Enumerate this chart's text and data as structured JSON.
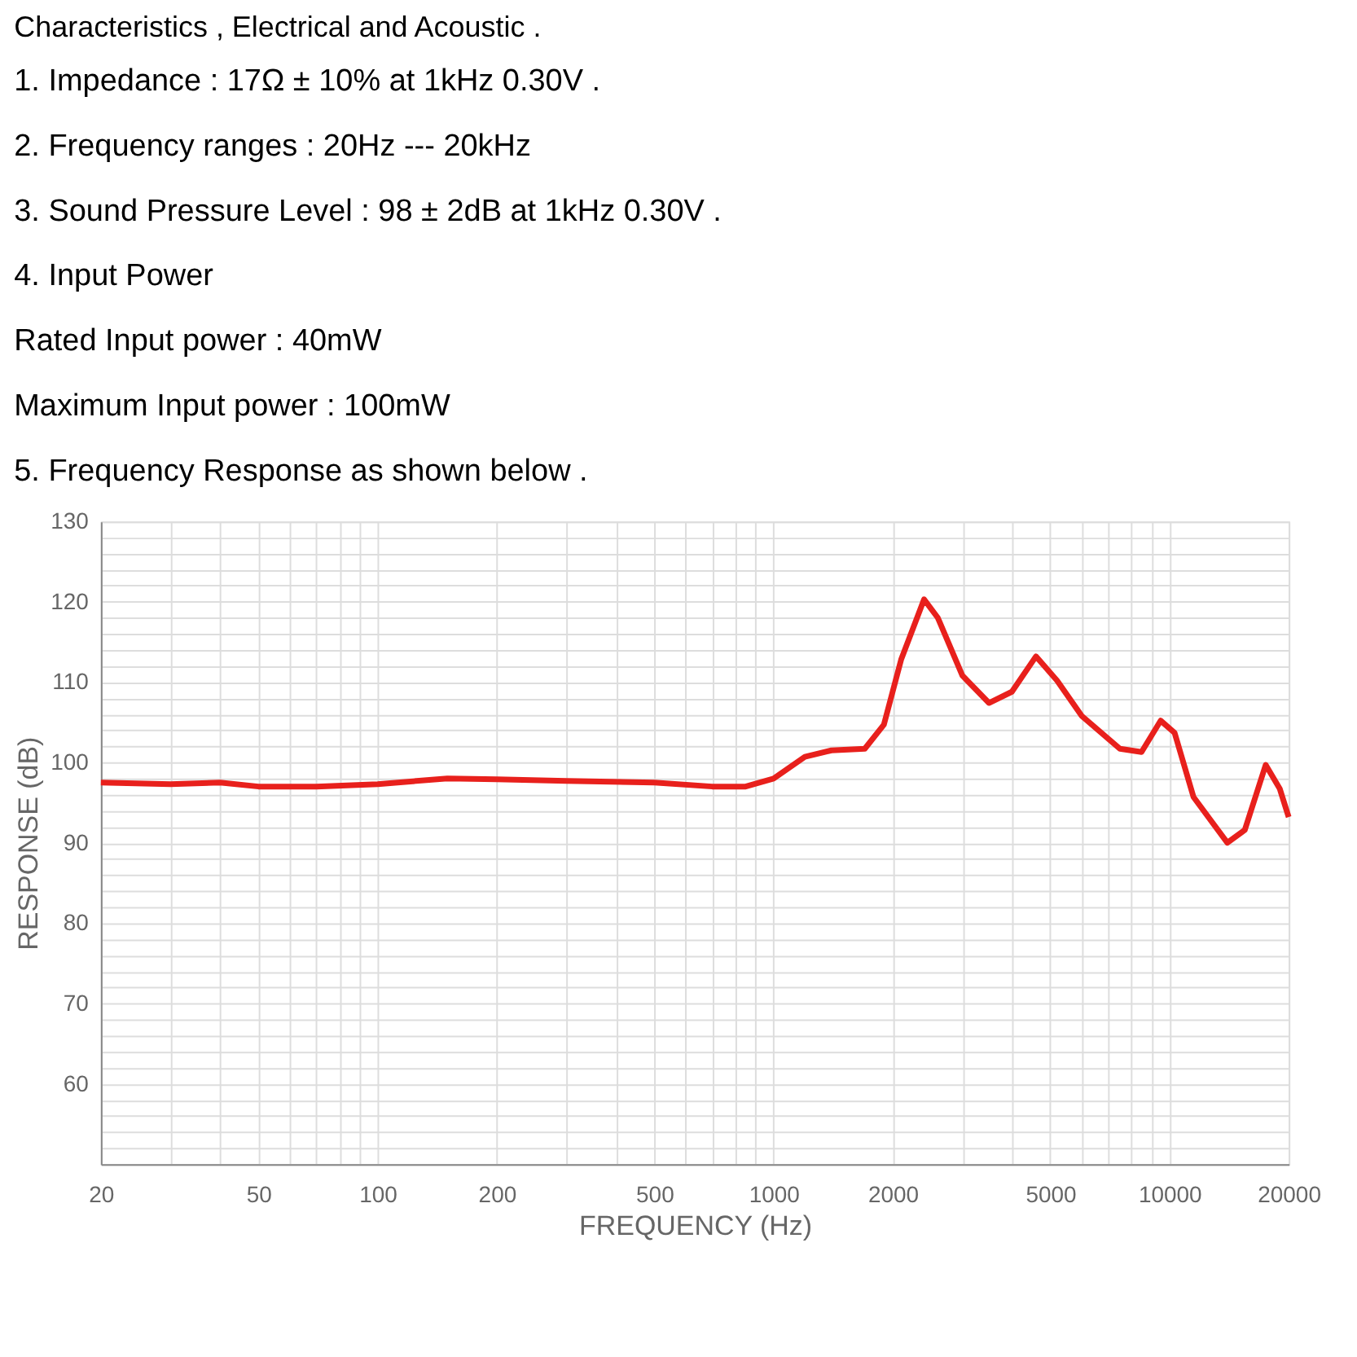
{
  "chart_data": {
    "type": "line",
    "title": "Characteristics , Electrical and Acoustic .",
    "annotations": [
      "1. Impedance : 17Ω ± 10% at 1kHz  0.30V .",
      "2. Frequency ranges : 20Hz --- 20kHz",
      "3. Sound Pressure Level :  98 ± 2dB at 1kHz 0.30V .",
      "4. Input Power",
      "Rated Input power : 40mW",
      "Maximum Input power : 100mW",
      "5. Frequency Response as shown below ."
    ],
    "xlabel": "FREQUENCY (Hz)",
    "ylabel": "RESPONSE (dB)",
    "log": "x",
    "grid": true,
    "marker": "none",
    "line_style": "solid",
    "legend": false,
    "xlim": [
      20,
      20000
    ],
    "ylim": [
      50,
      130
    ],
    "xticks": [
      20,
      {
        "value": 30,
        "label": null
      },
      {
        "value": 40,
        "label": null
      },
      50,
      {
        "value": 60,
        "label": null
      },
      {
        "value": 70,
        "label": null
      },
      {
        "value": 80,
        "label": null
      },
      {
        "value": 90,
        "label": null
      },
      100,
      200,
      {
        "value": 300,
        "label": null
      },
      {
        "value": 400,
        "label": null
      },
      500,
      {
        "value": 600,
        "label": null
      },
      {
        "value": 700,
        "label": null
      },
      {
        "value": 800,
        "label": null
      },
      {
        "value": 900,
        "label": null
      },
      1000,
      2000,
      {
        "value": 3000,
        "label": null
      },
      {
        "value": 4000,
        "label": null
      },
      5000,
      {
        "value": 6000,
        "label": null
      },
      {
        "value": 7000,
        "label": null
      },
      {
        "value": 8000,
        "label": null
      },
      {
        "value": 9000,
        "label": null
      },
      10000,
      20000
    ],
    "yticks": [
      {
        "value": 50,
        "label": null
      },
      {
        "value": 52,
        "label": null
      },
      {
        "value": 54,
        "label": null
      },
      {
        "value": 56,
        "label": null
      },
      {
        "value": 58,
        "label": null
      },
      60,
      {
        "value": 62,
        "label": null
      },
      {
        "value": 64,
        "label": null
      },
      {
        "value": 66,
        "label": null
      },
      {
        "value": 68,
        "label": null
      },
      70,
      {
        "value": 72,
        "label": null
      },
      {
        "value": 74,
        "label": null
      },
      {
        "value": 76,
        "label": null
      },
      {
        "value": 78,
        "label": null
      },
      80,
      {
        "value": 82,
        "label": null
      },
      {
        "value": 84,
        "label": null
      },
      {
        "value": 86,
        "label": null
      },
      {
        "value": 88,
        "label": null
      },
      90,
      {
        "value": 92,
        "label": null
      },
      {
        "value": 94,
        "label": null
      },
      {
        "value": 96,
        "label": null
      },
      {
        "value": 98,
        "label": null
      },
      100,
      {
        "value": 102,
        "label": null
      },
      {
        "value": 104,
        "label": null
      },
      {
        "value": 106,
        "label": null
      },
      {
        "value": 108,
        "label": null
      },
      110,
      {
        "value": 112,
        "label": null
      },
      {
        "value": 114,
        "label": null
      },
      {
        "value": 116,
        "label": null
      },
      {
        "value": 118,
        "label": null
      },
      120,
      {
        "value": 122,
        "label": null
      },
      {
        "value": 124,
        "label": null
      },
      {
        "value": 126,
        "label": null
      },
      {
        "value": 128,
        "label": null
      },
      130
    ],
    "x": [
      20,
      30,
      40,
      50,
      70,
      100,
      150,
      200,
      300,
      500,
      700,
      850,
      1000,
      1200,
      1400,
      1700,
      1900,
      2100,
      2400,
      2600,
      3000,
      3500,
      4000,
      4600,
      5200,
      6000,
      7500,
      8500,
      9500,
      10300,
      11500,
      14000,
      15500,
      17500,
      19000,
      20000
    ],
    "series": [
      {
        "color": "#e8201c",
        "values": [
          97.5,
          97.3,
          97.5,
          97,
          97,
          97.3,
          98,
          97.9,
          97.7,
          97.5,
          97,
          97,
          98,
          100.7,
          101.5,
          101.7,
          104.7,
          112.8,
          120.3,
          118,
          110.8,
          107.4,
          108.8,
          113.2,
          110.2,
          105.8,
          101.7,
          101.3,
          105.2,
          103.7,
          95.7,
          90,
          91.6,
          99.7,
          96.7,
          93.2
        ]
      }
    ]
  }
}
